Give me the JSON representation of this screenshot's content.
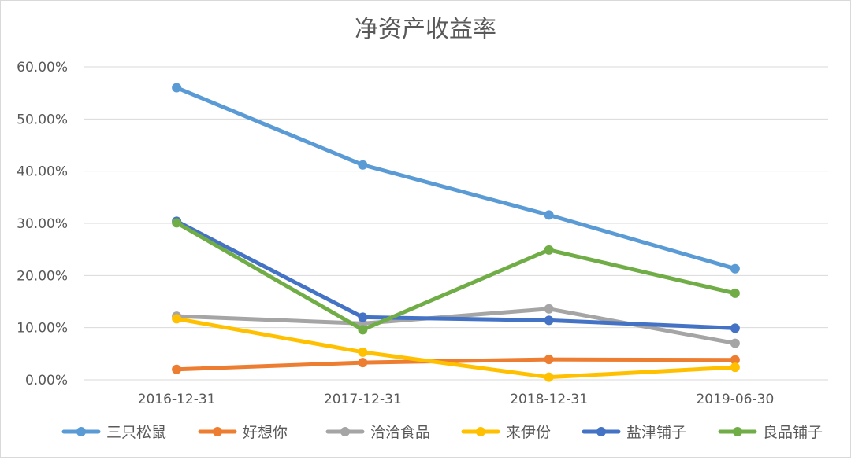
{
  "chart_data": {
    "type": "line",
    "title": "净资产收益率",
    "xlabel": "",
    "ylabel": "",
    "categories": [
      "2016-12-31",
      "2017-12-31",
      "2018-12-31",
      "2019-06-30"
    ],
    "ylim": [
      0,
      60
    ],
    "yticks": [
      "0.00%",
      "10.00%",
      "20.00%",
      "30.00%",
      "40.00%",
      "50.00%",
      "60.00%"
    ],
    "grid": true,
    "legend_position": "bottom",
    "series": [
      {
        "name": "三只松鼠",
        "color": "#5B9BD5",
        "values": [
          56.0,
          41.2,
          31.6,
          21.3
        ]
      },
      {
        "name": "好想你",
        "color": "#ED7D31",
        "values": [
          2.0,
          3.3,
          3.9,
          3.8
        ]
      },
      {
        "name": "洽洽食品",
        "color": "#A5A5A5",
        "values": [
          12.2,
          10.8,
          13.6,
          7.0
        ]
      },
      {
        "name": "来伊份",
        "color": "#FFC000",
        "values": [
          11.7,
          5.3,
          0.5,
          2.4
        ]
      },
      {
        "name": "盐津铺子",
        "color": "#4472C4",
        "values": [
          30.4,
          12.0,
          11.4,
          9.9
        ]
      },
      {
        "name": "良品铺子",
        "color": "#70AD47",
        "values": [
          30.1,
          9.6,
          24.9,
          16.6
        ]
      }
    ]
  }
}
